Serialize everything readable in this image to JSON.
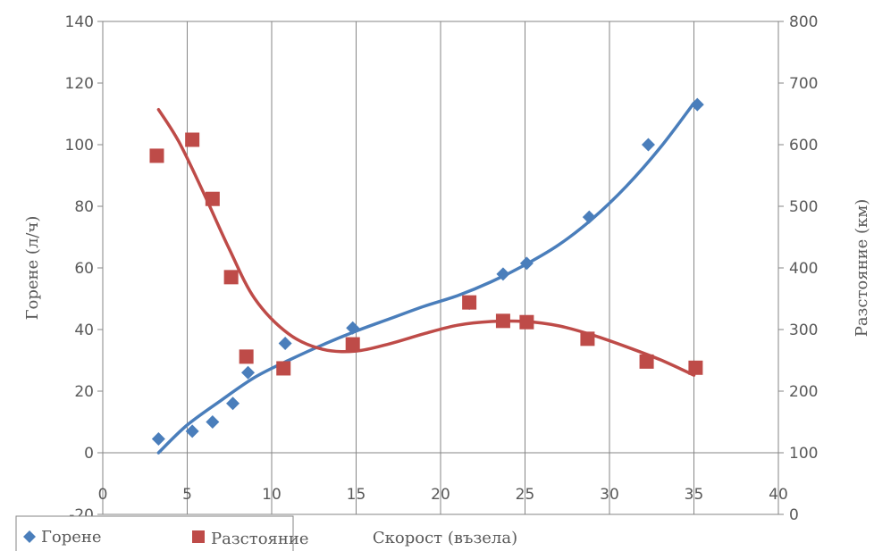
{
  "chart_data": {
    "type": "scatter",
    "x_axis": {
      "label": "Скорост (възела)",
      "min": 0,
      "max": 40,
      "step": 5,
      "tick_labels": [
        "0",
        "5",
        "10",
        "15",
        "20",
        "25",
        "30",
        "35",
        "40"
      ]
    },
    "y_left": {
      "label": "Горене (л/ч)",
      "min": -20,
      "max": 140,
      "step": 20,
      "tick_labels": [
        "-20",
        "0",
        "20",
        "40",
        "60",
        "80",
        "100",
        "120",
        "140"
      ]
    },
    "y_right": {
      "label": "Разстояние (км)",
      "min": 0,
      "max": 800,
      "step": 100,
      "tick_labels": [
        "0",
        "100",
        "200",
        "300",
        "400",
        "500",
        "600",
        "700",
        "800"
      ]
    },
    "grid": "vertical",
    "legend_position": "bottom-left",
    "series": [
      {
        "name": "Горене",
        "axis": "left",
        "marker": "diamond",
        "color": "#4a7ebb",
        "points": [
          [
            3.3,
            4.5
          ],
          [
            5.3,
            7
          ],
          [
            6.5,
            10
          ],
          [
            7.7,
            16
          ],
          [
            8.6,
            26
          ],
          [
            10.8,
            35.5
          ],
          [
            14.8,
            40.5
          ],
          [
            21.7,
            48.5
          ],
          [
            23.7,
            58
          ],
          [
            25.1,
            61.5
          ],
          [
            28.8,
            76.5
          ],
          [
            32.3,
            100
          ],
          [
            35.2,
            113
          ]
        ],
        "trend": [
          [
            3.3,
            0
          ],
          [
            5,
            9
          ],
          [
            7,
            17
          ],
          [
            9,
            24.5
          ],
          [
            11,
            30
          ],
          [
            13,
            35
          ],
          [
            15,
            39.5
          ],
          [
            17,
            43.5
          ],
          [
            19,
            47.5
          ],
          [
            21,
            51
          ],
          [
            23,
            55.5
          ],
          [
            25,
            61
          ],
          [
            27,
            67.5
          ],
          [
            29,
            76
          ],
          [
            31,
            86.5
          ],
          [
            33,
            99
          ],
          [
            35,
            113.5
          ]
        ]
      },
      {
        "name": "Разстояние",
        "axis": "right",
        "marker": "square",
        "color": "#be4b48",
        "points": [
          [
            3.2,
            582
          ],
          [
            5.3,
            608
          ],
          [
            6.5,
            512
          ],
          [
            7.6,
            385
          ],
          [
            8.5,
            256
          ],
          [
            10.7,
            237
          ],
          [
            14.8,
            276
          ],
          [
            21.7,
            344
          ],
          [
            23.7,
            314
          ],
          [
            25.1,
            312
          ],
          [
            28.7,
            285
          ],
          [
            32.2,
            248
          ],
          [
            35.1,
            238
          ]
        ],
        "trend": [
          [
            3.3,
            657
          ],
          [
            4.5,
            605
          ],
          [
            6,
            520
          ],
          [
            7.5,
            430
          ],
          [
            9,
            350
          ],
          [
            11,
            293
          ],
          [
            13,
            268
          ],
          [
            15,
            265
          ],
          [
            17,
            277
          ],
          [
            19,
            293
          ],
          [
            21,
            307
          ],
          [
            23,
            313
          ],
          [
            25,
            313
          ],
          [
            27,
            306
          ],
          [
            29,
            291
          ],
          [
            31,
            272
          ],
          [
            33,
            251
          ],
          [
            35,
            226
          ]
        ]
      }
    ]
  }
}
